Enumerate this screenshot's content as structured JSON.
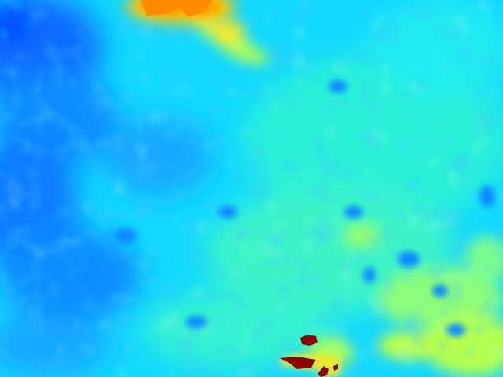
{
  "image": {
    "kind": "false-color heatmap",
    "colormap": "jet",
    "palette": {
      "deep_blue": "#0055ff",
      "blue": "#0a8cff",
      "light_blue": "#19b4ff",
      "cyan": "#00e5ff",
      "aqua": "#2cf2e6",
      "mint": "#5cf8b0",
      "yellow_green": "#b4ff50",
      "yellow": "#ffe51a",
      "orange": "#ffa000",
      "dark_red": "#8b0000"
    },
    "regions": [
      {
        "name": "hot-spot-top-center",
        "level": "high"
      },
      {
        "name": "cool-band-left",
        "level": "low"
      },
      {
        "name": "warm-zone-lower-right",
        "level": "medium-high"
      },
      {
        "name": "peak-blobs-bottom-center",
        "level": "maximum"
      }
    ]
  }
}
